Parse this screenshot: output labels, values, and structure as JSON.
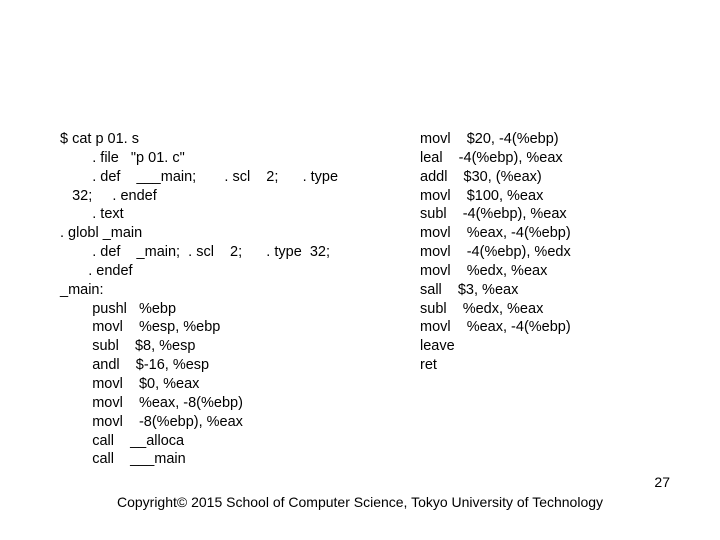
{
  "left_column": "$ cat p 01. s\n        . file   \"p 01. c\"\n        . def    ___main;       . scl    2;      . type\n   32;     . endef\n        . text\n. globl _main\n        . def    _main;  . scl    2;      . type  32;\n       . endef\n_main:\n        pushl   %ebp\n        movl    %esp, %ebp\n        subl    $8, %esp\n        andl    $-16, %esp\n        movl    $0, %eax\n        movl    %eax, -8(%ebp)\n        movl    -8(%ebp), %eax\n        call    __alloca\n        call    ___main",
  "right_column": "movl    $20, -4(%ebp)\nleal    -4(%ebp), %eax\naddl    $30, (%eax)\nmovl    $100, %eax\nsubl    -4(%ebp), %eax\nmovl    %eax, -4(%ebp)\nmovl    -4(%ebp), %edx\nmovl    %edx, %eax\nsall    $3, %eax\nsubl    %edx, %eax\nmovl    %eax, -4(%ebp)\nleave\nret",
  "footer": "Copyright© 2015  School of Computer Science, Tokyo University of Technology",
  "pagenum": "27",
  "colors": {
    "background": "#ffffff",
    "text": "#000000"
  },
  "fontsize": {
    "body": 14.5,
    "footer": 14,
    "pagenum": 14
  }
}
